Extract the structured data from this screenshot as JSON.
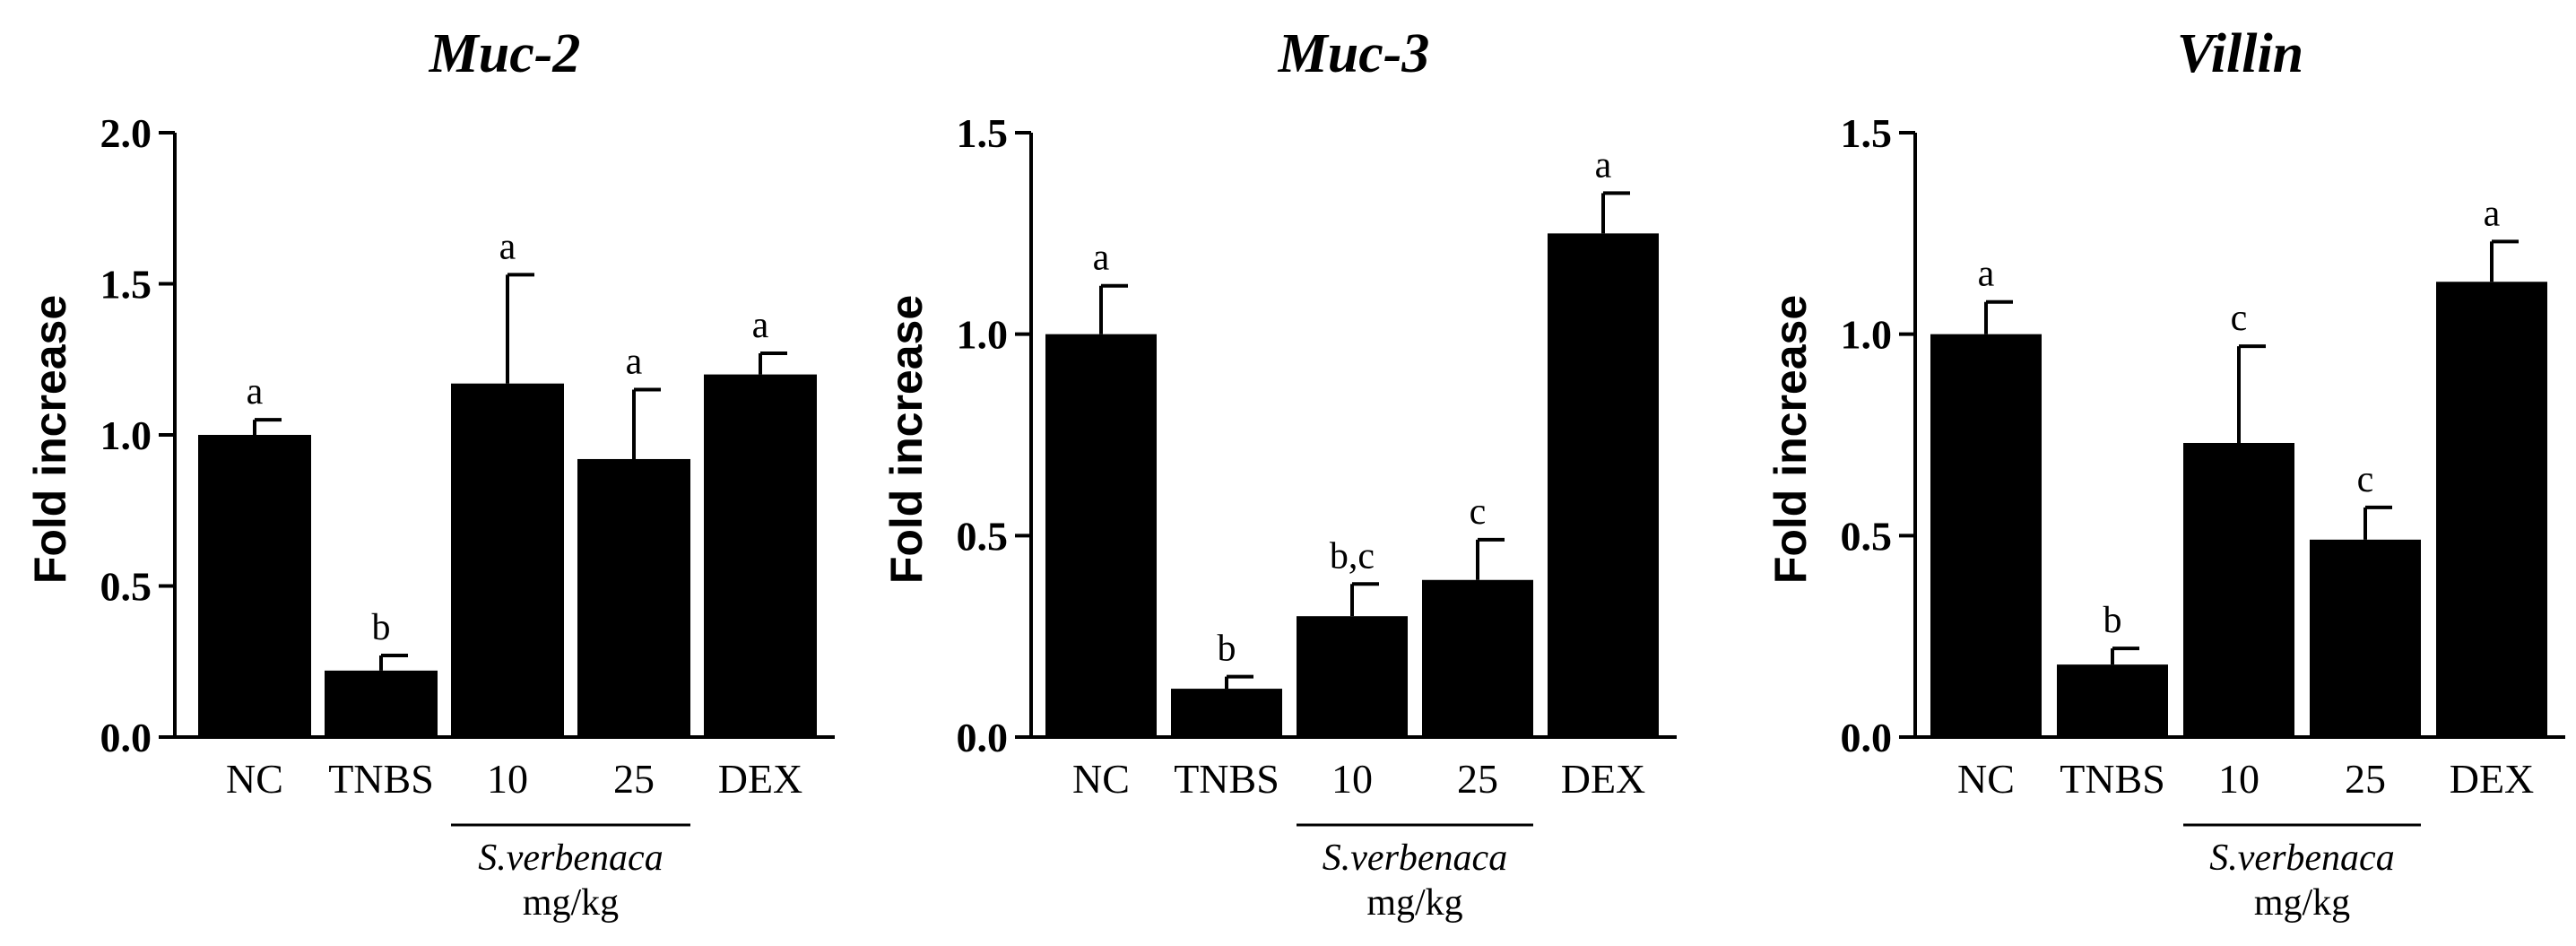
{
  "chart_data": [
    {
      "type": "bar",
      "title": "Muc-2",
      "ylabel": "Fold increase",
      "xlabel": "",
      "categories": [
        "NC",
        "TNBS",
        "10",
        "25",
        "DEX"
      ],
      "values": [
        1.0,
        0.22,
        1.17,
        0.92,
        1.2
      ],
      "errors": [
        0.05,
        0.05,
        0.36,
        0.23,
        0.07
      ],
      "significance": [
        "a",
        "b",
        "a",
        "a",
        "a"
      ],
      "ylim": [
        0,
        2.0
      ],
      "yticks": [
        0.0,
        0.5,
        1.0,
        1.5,
        2.0
      ],
      "ytick_labels": [
        "0.0",
        "0.5",
        "1.0",
        "1.5",
        "2.0"
      ],
      "group_label": {
        "species": "S.verbenaca",
        "unit": "mg/kg",
        "categories": [
          "10",
          "25"
        ]
      }
    },
    {
      "type": "bar",
      "title": "Muc-3",
      "ylabel": "Fold increase",
      "xlabel": "",
      "categories": [
        "NC",
        "TNBS",
        "10",
        "25",
        "DEX"
      ],
      "values": [
        1.0,
        0.12,
        0.3,
        0.39,
        1.25
      ],
      "errors": [
        0.12,
        0.03,
        0.08,
        0.1,
        0.1
      ],
      "significance": [
        "a",
        "b",
        "b,c",
        "c",
        "a"
      ],
      "ylim": [
        0,
        1.5
      ],
      "yticks": [
        0.0,
        0.5,
        1.0,
        1.5
      ],
      "ytick_labels": [
        "0.0",
        "0.5",
        "1.0",
        "1.5"
      ],
      "group_label": {
        "species": "S.verbenaca",
        "unit": "mg/kg",
        "categories": [
          "10",
          "25"
        ]
      }
    },
    {
      "type": "bar",
      "title": "Villin",
      "ylabel": "Fold increase",
      "xlabel": "",
      "categories": [
        "NC",
        "TNBS",
        "10",
        "25",
        "DEX"
      ],
      "values": [
        1.0,
        0.18,
        0.73,
        0.49,
        1.13
      ],
      "errors": [
        0.08,
        0.04,
        0.24,
        0.08,
        0.1
      ],
      "significance": [
        "a",
        "b",
        "c",
        "c",
        "a"
      ],
      "ylim": [
        0,
        1.5
      ],
      "yticks": [
        0.0,
        0.5,
        1.0,
        1.5
      ],
      "ytick_labels": [
        "0.0",
        "0.5",
        "1.0",
        "1.5"
      ],
      "group_label": {
        "species": "S.verbenaca",
        "unit": "mg/kg",
        "categories": [
          "10",
          "25"
        ]
      }
    }
  ],
  "colors": {
    "bar": "#000000",
    "axis": "#000000",
    "background": "#ffffff"
  }
}
